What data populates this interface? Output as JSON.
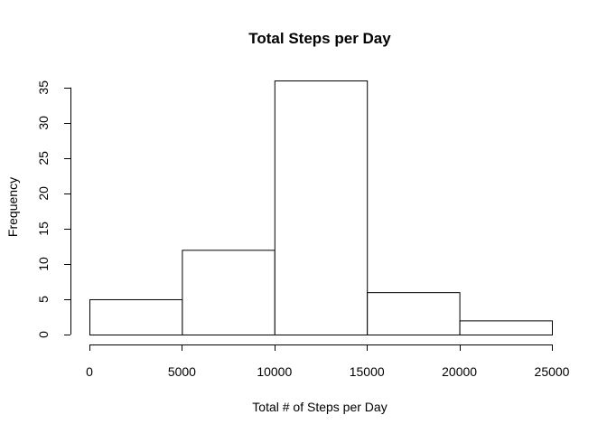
{
  "chart_data": {
    "type": "bar",
    "title": "Total Steps per Day",
    "xlabel": "Total # of Steps per Day",
    "ylabel": "Frequency",
    "bins": [
      {
        "from": 0,
        "to": 5000,
        "count": 5
      },
      {
        "from": 5000,
        "to": 10000,
        "count": 12
      },
      {
        "from": 10000,
        "to": 15000,
        "count": 36
      },
      {
        "from": 15000,
        "to": 20000,
        "count": 6
      },
      {
        "from": 20000,
        "to": 25000,
        "count": 2
      }
    ],
    "xlim": [
      0,
      25000
    ],
    "ylim": [
      0,
      36
    ],
    "xticks": [
      0,
      5000,
      10000,
      15000,
      20000,
      25000
    ],
    "yticks": [
      0,
      5,
      10,
      15,
      20,
      25,
      30,
      35
    ],
    "grid": false,
    "colors": {
      "bar_fill": "#ffffff",
      "bar_stroke": "#000000"
    }
  }
}
